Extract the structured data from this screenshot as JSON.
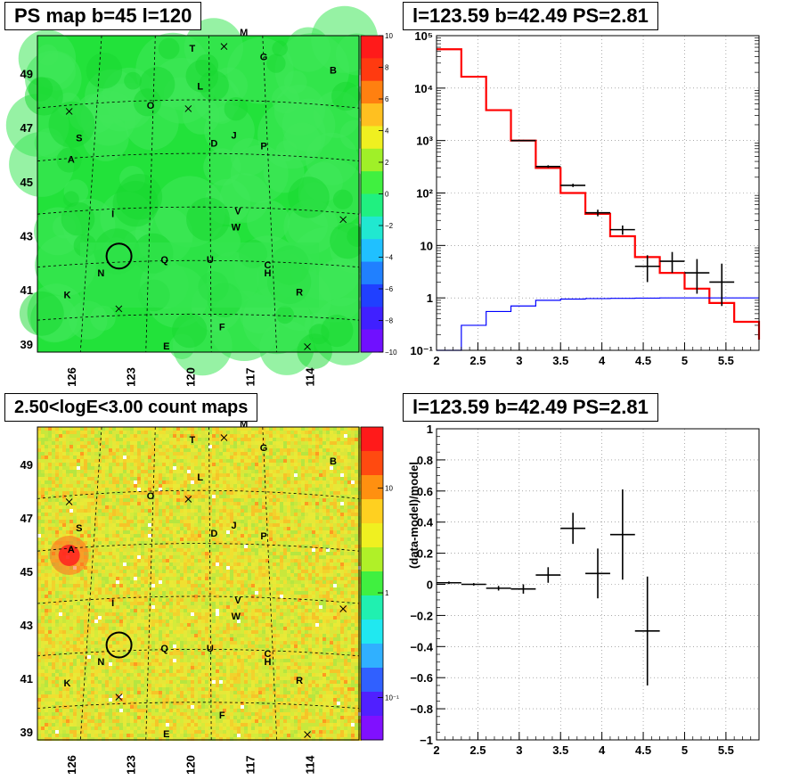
{
  "panels": {
    "ps_map": {
      "title": "PS map b=45 l=120",
      "y_ticks": [
        "49",
        "47",
        "45",
        "43",
        "41",
        "39"
      ],
      "x_ticks": [
        "126",
        "123",
        "120",
        "117",
        "114"
      ],
      "colorbar_ticks": [
        "10",
        "8",
        "6",
        "4",
        "2",
        "0",
        "−2",
        "−4",
        "−6",
        "−8",
        "−10"
      ],
      "colorbar_range": [
        -10,
        10
      ],
      "colors": {
        "background": "#22e23a",
        "patch": "#3fe85a",
        "contour": "#000000"
      }
    },
    "count_map": {
      "title": "2.50<logE<3.00 count maps",
      "y_ticks": [
        "49",
        "47",
        "45",
        "43",
        "41",
        "39"
      ],
      "x_ticks": [
        "126",
        "123",
        "120",
        "117",
        "114"
      ],
      "colorbar_ticks": [
        "10",
        "1",
        "10⁻¹"
      ],
      "colorbar_scale": "log",
      "colors": {
        "background": "#e6e838",
        "hotspot": "#ff2020"
      }
    },
    "spectrum": {
      "title": "l=123.59 b=42.49 PS=2.81"
    },
    "residual": {
      "title": "l=123.59 b=42.49 PS=2.81"
    }
  },
  "map_labels": [
    {
      "text": "T",
      "lon": 119.9,
      "lat": 49.8
    },
    {
      "text": "M",
      "lon": 117.3,
      "lat": 50.4
    },
    {
      "text": "G",
      "lon": 116.3,
      "lat": 49.5
    },
    {
      "text": "B",
      "lon": 112.8,
      "lat": 49.0
    },
    {
      "text": "L",
      "lon": 119.5,
      "lat": 48.4
    },
    {
      "text": "O",
      "lon": 122.0,
      "lat": 47.7
    },
    {
      "text": "J",
      "lon": 117.8,
      "lat": 46.6
    },
    {
      "text": "D",
      "lon": 118.8,
      "lat": 46.3
    },
    {
      "text": "P",
      "lon": 116.3,
      "lat": 46.2
    },
    {
      "text": "S",
      "lon": 125.6,
      "lat": 46.5
    },
    {
      "text": "A",
      "lon": 126.0,
      "lat": 45.7
    },
    {
      "text": "I",
      "lon": 123.9,
      "lat": 43.7
    },
    {
      "text": "V",
      "lon": 117.6,
      "lat": 43.8
    },
    {
      "text": "W",
      "lon": 117.7,
      "lat": 43.2
    },
    {
      "text": "N",
      "lon": 124.5,
      "lat": 41.5
    },
    {
      "text": "Q",
      "lon": 121.3,
      "lat": 42.0
    },
    {
      "text": "U",
      "lon": 119.0,
      "lat": 42.0
    },
    {
      "text": "C",
      "lon": 116.1,
      "lat": 41.8
    },
    {
      "text": "H",
      "lon": 116.1,
      "lat": 41.5
    },
    {
      "text": "R",
      "lon": 114.5,
      "lat": 40.8
    },
    {
      "text": "K",
      "lon": 126.2,
      "lat": 40.7
    },
    {
      "text": "F",
      "lon": 118.4,
      "lat": 39.5
    },
    {
      "text": "E",
      "lon": 121.2,
      "lat": 38.8
    }
  ],
  "map_crosses": [
    {
      "lon": 118.3,
      "lat": 50.0
    },
    {
      "lon": 126.1,
      "lat": 47.6
    },
    {
      "lon": 120.1,
      "lat": 47.7
    },
    {
      "lon": 112.3,
      "lat": 43.6
    },
    {
      "lon": 123.6,
      "lat": 40.3
    },
    {
      "lon": 114.1,
      "lat": 38.9
    }
  ],
  "source_circle": {
    "lon": 123.59,
    "lat": 42.25
  },
  "chart_data": [
    {
      "type": "bar",
      "title": "l=123.59 b=42.49 PS=2.81",
      "xlim": [
        2,
        5.9
      ],
      "ylim": [
        0.1,
        100000
      ],
      "yscale": "log",
      "x_ticks": [
        "2",
        "2.5",
        "3",
        "3.5",
        "4",
        "4.5",
        "5",
        "5.5"
      ],
      "y_ticks": [
        "10⁵",
        "10⁴",
        "10³",
        "10²",
        "10",
        "1",
        "10⁻¹"
      ],
      "grid": true,
      "series": [
        {
          "style": "step",
          "color": "#ff0000",
          "bin_edges": [
            2.0,
            2.3,
            2.6,
            2.9,
            3.2,
            3.5,
            3.8,
            4.1,
            4.4,
            4.7,
            5.0,
            5.3,
            5.6,
            5.9
          ],
          "values": [
            55000,
            16500,
            3800,
            1000,
            300,
            100,
            40,
            15,
            6,
            3,
            1.5,
            0.8,
            0.35,
            0.16
          ]
        },
        {
          "style": "step",
          "color": "#0000ff",
          "bin_edges": [
            2.0,
            2.3,
            2.6,
            2.9,
            3.2,
            3.5,
            3.8,
            4.1,
            4.4,
            4.7,
            5.0,
            5.3,
            5.6,
            5.9
          ],
          "values": [
            0.005,
            0.3,
            0.55,
            0.7,
            0.9,
            0.95,
            0.97,
            0.98,
            0.99,
            1.0,
            1.0,
            1.0,
            1.0,
            1.0
          ]
        },
        {
          "style": "errorbar",
          "color": "#000000",
          "x": [
            3.05,
            3.35,
            3.65,
            3.95,
            4.25,
            4.55,
            4.85,
            5.15,
            5.45
          ],
          "x_halfwidth": [
            0.15,
            0.15,
            0.15,
            0.15,
            0.15,
            0.15,
            0.15,
            0.15,
            0.15
          ],
          "y": [
            1000,
            320,
            140,
            42,
            20,
            4,
            5,
            3,
            2
          ],
          "y_err_low": [
            30,
            18,
            10,
            6,
            4,
            2,
            2,
            1.8,
            1.3
          ],
          "y_err_high": [
            30,
            18,
            10,
            6,
            4,
            2.5,
            2.5,
            2.5,
            2.5
          ]
        }
      ]
    },
    {
      "type": "scatter",
      "title": "l=123.59 b=42.49 PS=2.81",
      "ylabel": "(data-model)/model",
      "xlim": [
        2,
        5.9
      ],
      "ylim": [
        -1,
        1
      ],
      "x_ticks": [
        "2",
        "2.5",
        "3",
        "3.5",
        "4",
        "4.5",
        "5",
        "5.5"
      ],
      "y_ticks": [
        "1",
        "0.8",
        "0.6",
        "0.4",
        "0.2",
        "0",
        "−0.2",
        "−0.4",
        "−0.6",
        "−0.8",
        "−1"
      ],
      "grid": true,
      "series": [
        {
          "style": "errorbar",
          "color": "#000000",
          "x": [
            2.15,
            2.45,
            2.75,
            3.05,
            3.35,
            3.65,
            3.95,
            4.25,
            4.55
          ],
          "x_halfwidth": [
            0.15,
            0.15,
            0.15,
            0.15,
            0.15,
            0.15,
            0.15,
            0.15,
            0.15
          ],
          "y": [
            0.01,
            0.0,
            -0.025,
            -0.03,
            0.06,
            0.36,
            0.07,
            0.32,
            -0.3
          ],
          "y_err": [
            0.008,
            0.008,
            0.015,
            0.03,
            0.05,
            0.1,
            0.16,
            0.29,
            0.35
          ]
        }
      ]
    }
  ]
}
